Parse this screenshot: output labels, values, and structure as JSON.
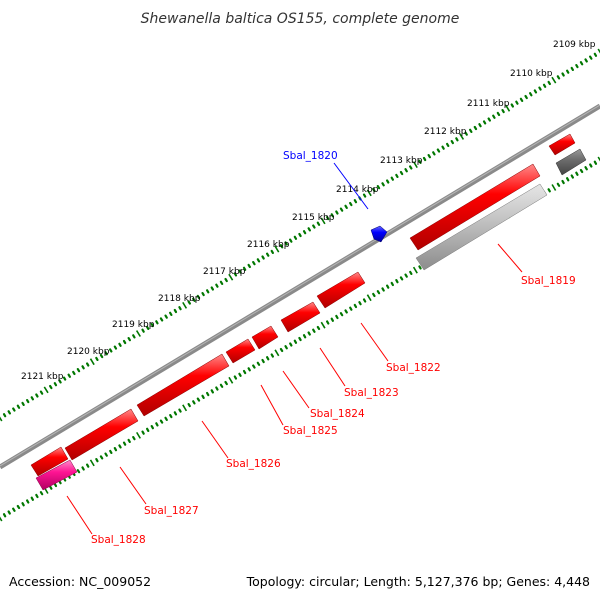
{
  "title": "Shewanella baltica OS155, complete genome",
  "footer": {
    "accession": "Accession: NC_009052",
    "topology": "Topology: circular; Length: 5,127,376 bp; Genes: 4,448"
  },
  "colors": {
    "background": "#ffffff",
    "backbone": "#808080",
    "gene_red": "#ff0000",
    "gene_pink": "#ff1493",
    "gene_blue": "#0000ff",
    "gene_gray": "#bbbbbb",
    "gene_darkgray": "#777777",
    "ticks": "#007700"
  },
  "kbp_labels": [
    "2109 kbp",
    "2110 kbp",
    "2111 kbp",
    "2112 kbp",
    "2113 kbp",
    "2114 kbp",
    "2115 kbp",
    "2116 kbp",
    "2117 kbp",
    "2118 kbp",
    "2119 kbp",
    "2120 kbp",
    "2121 kbp"
  ],
  "gene_labels": {
    "sbal_1819": "Sbal_1819",
    "sbal_1820": "Sbal_1820",
    "sbal_1822": "Sbal_1822",
    "sbal_1823": "Sbal_1823",
    "sbal_1824": "Sbal_1824",
    "sbal_1825": "Sbal_1825",
    "sbal_1826": "Sbal_1826",
    "sbal_1827": "Sbal_1827",
    "sbal_1828": "Sbal_1828"
  }
}
